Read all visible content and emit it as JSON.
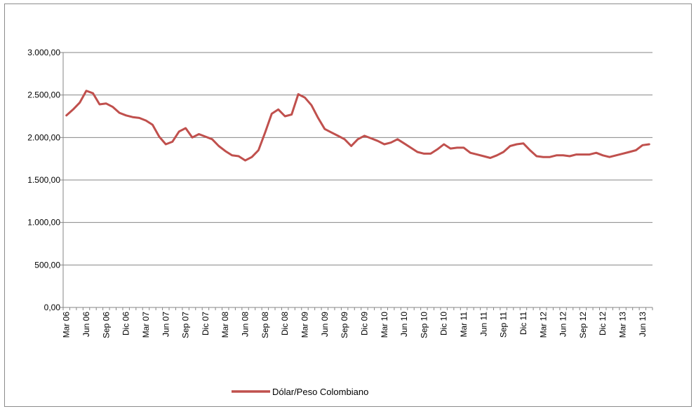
{
  "colors": {
    "series_line": "#C0504D",
    "gridline": "#868686",
    "axis": "#868686",
    "frame": "#8c8c8c"
  },
  "chart_data": {
    "type": "line",
    "title": "",
    "xlabel": "",
    "ylabel": "",
    "ylim": [
      0,
      3000
    ],
    "y_ticks": [
      "0,00",
      "500,00",
      "1.000,00",
      "1.500,00",
      "2.000,00",
      "2.500,00",
      "3.000,00"
    ],
    "grid": "horizontal",
    "legend_position": "bottom",
    "x_tick_labels": [
      "Mar 06",
      "Jun 06",
      "Sep 06",
      "Dic 06",
      "Mar 07",
      "Jun 07",
      "Sep 07",
      "Dic 07",
      "Mar 08",
      "Jun 08",
      "Sep 08",
      "Dic 08",
      "Mar 09",
      "Jun 09",
      "Sep 09",
      "Dic 09",
      "Mar 10",
      "Jun 10",
      "Sep 10",
      "Dic 10",
      "Mar 11",
      "Jun 11",
      "Sep 11",
      "Dic 11",
      "Mar 12",
      "Jun 12",
      "Sep 12",
      "Dic 12",
      "Mar 13",
      "Jun 13"
    ],
    "series": [
      {
        "name": "Dólar/Peso Colombiano",
        "start_month": "Mar 06",
        "values": [
          2260,
          2330,
          2410,
          2550,
          2520,
          2390,
          2400,
          2360,
          2290,
          2260,
          2240,
          2230,
          2200,
          2150,
          2010,
          1920,
          1950,
          2070,
          2110,
          2000,
          2040,
          2010,
          1980,
          1900,
          1840,
          1790,
          1780,
          1730,
          1770,
          1850,
          2060,
          2280,
          2330,
          2250,
          2270,
          2510,
          2470,
          2380,
          2230,
          2100,
          2060,
          2020,
          1980,
          1900,
          1980,
          2020,
          1990,
          1960,
          1920,
          1940,
          1980,
          1930,
          1880,
          1830,
          1810,
          1810,
          1860,
          1920,
          1870,
          1880,
          1880,
          1820,
          1800,
          1780,
          1760,
          1790,
          1830,
          1900,
          1920,
          1930,
          1850,
          1780,
          1770,
          1770,
          1790,
          1790,
          1780,
          1800,
          1800,
          1800,
          1820,
          1790,
          1770,
          1790,
          1810,
          1830,
          1850,
          1910,
          1920
        ]
      }
    ]
  }
}
